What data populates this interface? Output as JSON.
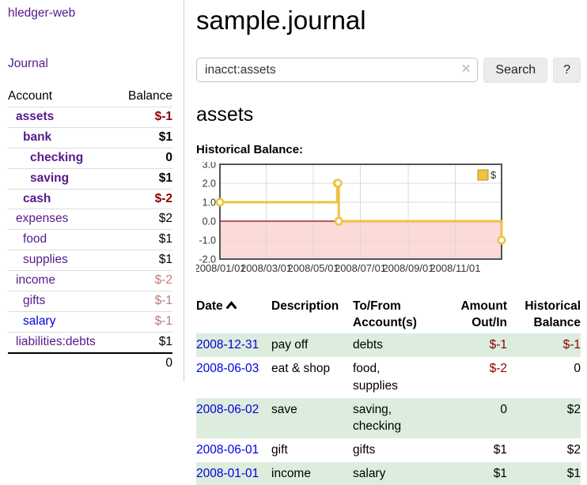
{
  "app": {
    "brand": "hledger-web"
  },
  "nav": {
    "journal": "Journal"
  },
  "sidebar": {
    "account_header": "Account",
    "balance_header": "Balance",
    "total": "0",
    "accounts": [
      {
        "label": "assets",
        "balance": "$-1",
        "level": 1,
        "emph": true,
        "balance_class": "neg-strong",
        "link_class": ""
      },
      {
        "label": "bank",
        "balance": "$1",
        "level": 2,
        "emph": true,
        "balance_class": "strong",
        "link_class": ""
      },
      {
        "label": "checking",
        "balance": "0",
        "level": 3,
        "emph": true,
        "balance_class": "strong",
        "link_class": ""
      },
      {
        "label": "saving",
        "balance": "$1",
        "level": 3,
        "emph": true,
        "balance_class": "strong",
        "link_class": ""
      },
      {
        "label": "cash",
        "balance": "$-2",
        "level": 2,
        "emph": true,
        "balance_class": "neg-strong",
        "link_class": ""
      },
      {
        "label": "expenses",
        "balance": "$2",
        "level": 1,
        "emph": false,
        "balance_class": "",
        "link_class": ""
      },
      {
        "label": "food",
        "balance": "$1",
        "level": 2,
        "emph": false,
        "balance_class": "",
        "link_class": ""
      },
      {
        "label": "supplies",
        "balance": "$1",
        "level": 2,
        "emph": false,
        "balance_class": "",
        "link_class": ""
      },
      {
        "label": "income",
        "balance": "$-2",
        "level": 1,
        "emph": false,
        "balance_class": "neg-soft",
        "link_class": ""
      },
      {
        "label": "gifts",
        "balance": "$-1",
        "level": 2,
        "emph": false,
        "balance_class": "neg-soft",
        "link_class": ""
      },
      {
        "label": "salary",
        "balance": "$-1",
        "level": 2,
        "emph": false,
        "balance_class": "neg-soft",
        "link_class": "blue"
      },
      {
        "label": "liabilities:debts",
        "balance": "$1",
        "level": 1,
        "emph": false,
        "balance_class": "",
        "link_class": ""
      }
    ]
  },
  "main": {
    "title": "sample.journal"
  },
  "search": {
    "value": "inacct:assets",
    "clear_icon": "✕",
    "search_button": "Search",
    "help_button": "?"
  },
  "account_page": {
    "title": "assets",
    "chart_label": "Historical Balance:"
  },
  "chart_data": {
    "type": "line",
    "step": true,
    "title": "Historical Balance",
    "x_range": [
      "2008-01-01",
      "2008-12-31"
    ],
    "ylim": [
      -2.0,
      3.0
    ],
    "y_ticks": [
      "3.0",
      "2.0",
      "1.0",
      "0.0",
      "-1.0",
      "-2.0"
    ],
    "x_ticks": [
      {
        "date": "2008-01-01",
        "label": "2008/01/01"
      },
      {
        "date": "2008-03-01",
        "label": "2008/03/01"
      },
      {
        "date": "2008-05-01",
        "label": "2008/05/01"
      },
      {
        "date": "2008-07-01",
        "label": "2008/07/01"
      },
      {
        "date": "2008-09-01",
        "label": "2008/09/01"
      },
      {
        "date": "2008-11-01",
        "label": "2008/11/01"
      }
    ],
    "series": [
      {
        "name": "$",
        "color": "#edc240",
        "points": [
          [
            "2008-01-01",
            1
          ],
          [
            "2008-06-01",
            2
          ],
          [
            "2008-06-02",
            2
          ],
          [
            "2008-06-03",
            0
          ],
          [
            "2008-12-31",
            -1
          ]
        ]
      }
    ],
    "legend": {
      "position": "top-right",
      "label": "$"
    },
    "negative_region_color": "#fcdada",
    "zero_line_color": "#8b0000",
    "grid_color": "#d9d9d9",
    "border_color": "#545454",
    "grid": true
  },
  "register": {
    "headers": {
      "date": "Date",
      "description": "Description",
      "accounts": "To/From Account(s)",
      "amount": "Amount Out/In",
      "balance": "Historical Balance"
    },
    "rows": [
      {
        "date": "2008-12-31",
        "description": "pay off",
        "accounts": "debts",
        "amount": "$-1",
        "balance": "$-1",
        "amount_neg": true,
        "balance_neg": true,
        "shade": true
      },
      {
        "date": "2008-06-03",
        "description": "eat & shop",
        "accounts": "food, supplies",
        "amount": "$-2",
        "balance": "0",
        "amount_neg": true,
        "balance_neg": false,
        "shade": false
      },
      {
        "date": "2008-06-02",
        "description": "save",
        "accounts": "saving, checking",
        "amount": "0",
        "balance": "$2",
        "amount_neg": false,
        "balance_neg": false,
        "shade": true
      },
      {
        "date": "2008-06-01",
        "description": "gift",
        "accounts": "gifts",
        "amount": "$1",
        "balance": "$2",
        "amount_neg": false,
        "balance_neg": false,
        "shade": false
      },
      {
        "date": "2008-01-01",
        "description": "income",
        "accounts": "salary",
        "amount": "$1",
        "balance": "$1",
        "amount_neg": false,
        "balance_neg": false,
        "shade": true
      }
    ]
  }
}
